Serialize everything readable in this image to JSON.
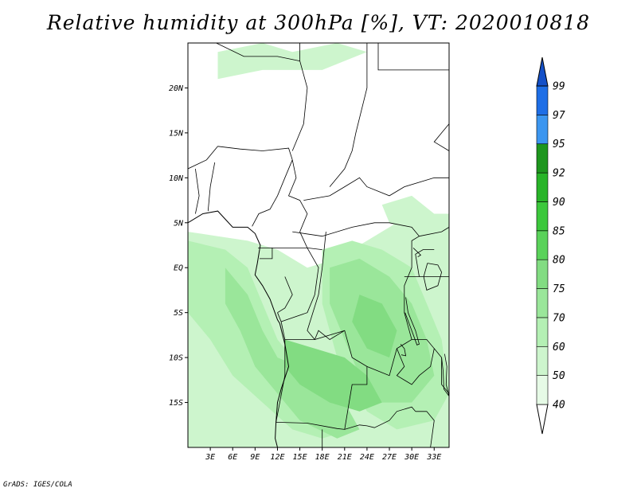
{
  "title": "Relative humidity at 300hPa [%], VT: 2020010818",
  "credit": "GrADS: IGES/COLA",
  "map": {
    "lon_range": [
      0,
      35
    ],
    "lat_range": [
      -20,
      25
    ],
    "lat_ticks": [
      {
        "value": 20,
        "label": "20N"
      },
      {
        "value": 15,
        "label": "15N"
      },
      {
        "value": 10,
        "label": "10N"
      },
      {
        "value": 5,
        "label": "5N"
      },
      {
        "value": 0,
        "label": "EQ"
      },
      {
        "value": -5,
        "label": "5S"
      },
      {
        "value": -10,
        "label": "10S"
      },
      {
        "value": -15,
        "label": "15S"
      }
    ],
    "lon_ticks": [
      {
        "value": 3,
        "label": "3E"
      },
      {
        "value": 6,
        "label": "6E"
      },
      {
        "value": 9,
        "label": "9E"
      },
      {
        "value": 12,
        "label": "12E"
      },
      {
        "value": 15,
        "label": "15E"
      },
      {
        "value": 18,
        "label": "18E"
      },
      {
        "value": 21,
        "label": "21E"
      },
      {
        "value": 24,
        "label": "24E"
      },
      {
        "value": 27,
        "label": "27E"
      },
      {
        "value": 30,
        "label": "30E"
      },
      {
        "value": 33,
        "label": "33E"
      }
    ]
  },
  "colorbar": {
    "levels": [
      "40",
      "50",
      "60",
      "70",
      "75",
      "80",
      "85",
      "90",
      "92",
      "95",
      "97",
      "99"
    ],
    "colors": [
      "#ffffff",
      "#e6fae6",
      "#cdf5cd",
      "#b4f0b4",
      "#9ae69a",
      "#82dc82",
      "#5ad25a",
      "#3cc83c",
      "#28b428",
      "#1e961e",
      "#3c96f0",
      "#1e6ee6",
      "#1450c8"
    ]
  },
  "humidity_regions": [
    {
      "level": "50",
      "lon_lat": [
        [
          0,
          4
        ],
        [
          4,
          3.5
        ],
        [
          8,
          3
        ],
        [
          12,
          2
        ],
        [
          16,
          0
        ],
        [
          20,
          1
        ],
        [
          24,
          3
        ],
        [
          28,
          5
        ],
        [
          32,
          6
        ],
        [
          35,
          5
        ],
        [
          35,
          -20
        ],
        [
          0,
          -20
        ]
      ]
    },
    {
      "level": "50",
      "lon_lat": [
        [
          4,
          24
        ],
        [
          10,
          25
        ],
        [
          14,
          24
        ],
        [
          20,
          25
        ],
        [
          24,
          24
        ],
        [
          18,
          22
        ],
        [
          10,
          22
        ],
        [
          4,
          21
        ]
      ]
    },
    {
      "level": "50",
      "lon_lat": [
        [
          26,
          7
        ],
        [
          30,
          8
        ],
        [
          33,
          6
        ],
        [
          35,
          6
        ],
        [
          35,
          4
        ],
        [
          30,
          4
        ],
        [
          27,
          5
        ]
      ]
    },
    {
      "level": "60",
      "lon_lat": [
        [
          0,
          3
        ],
        [
          5,
          2
        ],
        [
          8,
          0
        ],
        [
          10,
          -4
        ],
        [
          12,
          -8
        ],
        [
          14,
          -10
        ],
        [
          17,
          -12
        ],
        [
          20,
          -14
        ],
        [
          22,
          -18
        ],
        [
          18,
          -19
        ],
        [
          14,
          -18
        ],
        [
          10,
          -15
        ],
        [
          6,
          -12
        ],
        [
          3,
          -8
        ],
        [
          0,
          -5
        ]
      ]
    },
    {
      "level": "60",
      "lon_lat": [
        [
          18,
          2
        ],
        [
          22,
          3
        ],
        [
          26,
          2
        ],
        [
          30,
          0
        ],
        [
          32,
          -4
        ],
        [
          34,
          -8
        ],
        [
          35,
          -14
        ],
        [
          33,
          -17
        ],
        [
          28,
          -18
        ],
        [
          24,
          -16
        ],
        [
          20,
          -10
        ],
        [
          18,
          -4
        ]
      ]
    },
    {
      "level": "70",
      "lon_lat": [
        [
          5,
          0
        ],
        [
          8,
          -3
        ],
        [
          10,
          -7
        ],
        [
          12,
          -10
        ],
        [
          15,
          -11
        ],
        [
          18,
          -13
        ],
        [
          21,
          -15
        ],
        [
          23,
          -18
        ],
        [
          20,
          -19
        ],
        [
          15,
          -17
        ],
        [
          12,
          -14
        ],
        [
          9,
          -11
        ],
        [
          7,
          -7
        ],
        [
          5,
          -4
        ]
      ]
    },
    {
      "level": "70",
      "lon_lat": [
        [
          19,
          0
        ],
        [
          23,
          1
        ],
        [
          27,
          -1
        ],
        [
          30,
          -4
        ],
        [
          32,
          -8
        ],
        [
          33,
          -12
        ],
        [
          30,
          -15
        ],
        [
          26,
          -15
        ],
        [
          23,
          -12
        ],
        [
          21,
          -8
        ],
        [
          19,
          -4
        ]
      ]
    },
    {
      "level": "75",
      "lon_lat": [
        [
          13,
          -8
        ],
        [
          17,
          -9
        ],
        [
          21,
          -10
        ],
        [
          24,
          -12
        ],
        [
          26,
          -15
        ],
        [
          23,
          -16
        ],
        [
          19,
          -15
        ],
        [
          15,
          -13
        ],
        [
          13,
          -11
        ]
      ]
    },
    {
      "level": "75",
      "lon_lat": [
        [
          23,
          -3
        ],
        [
          26,
          -4
        ],
        [
          28,
          -7
        ],
        [
          27,
          -10
        ],
        [
          24,
          -9
        ],
        [
          22,
          -6
        ]
      ]
    }
  ],
  "country_borders": [
    [
      [
        3.8,
        25
      ],
      [
        7.5,
        23.5
      ],
      [
        12,
        23.5
      ],
      [
        15,
        23
      ]
    ],
    [
      [
        15,
        25
      ],
      [
        15,
        23
      ],
      [
        16,
        20
      ],
      [
        15.5,
        16
      ],
      [
        14,
        13
      ]
    ],
    [
      [
        24,
        25
      ],
      [
        24,
        20
      ],
      [
        22.5,
        15
      ],
      [
        22,
        13
      ],
      [
        21,
        11
      ],
      [
        19,
        9
      ]
    ],
    [
      [
        4,
        13.5
      ],
      [
        7,
        13.2
      ],
      [
        10,
        13
      ],
      [
        13.5,
        13.3
      ],
      [
        14,
        12
      ]
    ],
    [
      [
        0,
        11
      ],
      [
        2.5,
        12
      ],
      [
        4,
        13.5
      ]
    ],
    [
      [
        2.7,
        6.3
      ],
      [
        3,
        9
      ],
      [
        3.6,
        11.7
      ]
    ],
    [
      [
        1,
        6
      ],
      [
        1.5,
        8
      ],
      [
        1,
        11
      ]
    ],
    [
      [
        14,
        12
      ],
      [
        14.5,
        10
      ],
      [
        13.5,
        8
      ],
      [
        15,
        7.5
      ],
      [
        16,
        6
      ],
      [
        15,
        4
      ],
      [
        16,
        2.2
      ]
    ],
    [
      [
        8.6,
        4.6
      ],
      [
        9.5,
        6
      ],
      [
        11,
        6.5
      ],
      [
        12,
        8
      ],
      [
        13,
        10
      ],
      [
        14,
        12
      ]
    ],
    [
      [
        14,
        4
      ],
      [
        18,
        3.5
      ],
      [
        22,
        4.5
      ],
      [
        25,
        5
      ],
      [
        27,
        5
      ],
      [
        30,
        4.5
      ],
      [
        31,
        3.5
      ]
    ],
    [
      [
        15.5,
        7.5
      ],
      [
        19,
        8
      ],
      [
        21,
        9
      ],
      [
        23,
        10
      ],
      [
        24,
        9
      ],
      [
        27,
        8
      ],
      [
        29,
        9
      ],
      [
        33,
        10
      ],
      [
        35,
        10
      ]
    ],
    [
      [
        9.4,
        2.2
      ],
      [
        11.3,
        2.2
      ],
      [
        11.3,
        1
      ],
      [
        9.6,
        1
      ]
    ],
    [
      [
        11.3,
        2.2
      ],
      [
        14,
        2.2
      ],
      [
        16,
        2.2
      ],
      [
        18,
        2
      ]
    ],
    [
      [
        13,
        -1
      ],
      [
        14,
        -3
      ],
      [
        13,
        -4.5
      ],
      [
        12,
        -5
      ]
    ],
    [
      [
        16,
        2.2
      ],
      [
        17.5,
        0
      ],
      [
        17,
        -3
      ],
      [
        16,
        -5
      ],
      [
        12.5,
        -6
      ],
      [
        12,
        -5
      ]
    ],
    [
      [
        18.5,
        4
      ],
      [
        18,
        0
      ],
      [
        17.5,
        -3
      ],
      [
        16,
        -7
      ],
      [
        17,
        -8
      ],
      [
        21,
        -7
      ],
      [
        22,
        -10
      ],
      [
        24,
        -11
      ],
      [
        27,
        -12
      ],
      [
        28,
        -9
      ],
      [
        30,
        -8
      ],
      [
        29,
        -5
      ],
      [
        29,
        -2
      ],
      [
        30,
        0
      ],
      [
        30,
        3
      ],
      [
        31,
        3.5
      ]
    ],
    [
      [
        11.8,
        -17.2
      ],
      [
        13,
        -12
      ],
      [
        13,
        -8
      ],
      [
        12.5,
        -6
      ]
    ],
    [
      [
        13,
        -8
      ],
      [
        17,
        -8
      ],
      [
        17.5,
        -7
      ],
      [
        19,
        -8
      ],
      [
        21,
        -7
      ]
    ],
    [
      [
        11.8,
        -17.2
      ],
      [
        16,
        -17.3
      ],
      [
        20,
        -17.9
      ],
      [
        21,
        -18
      ],
      [
        23,
        -17.5
      ],
      [
        24,
        -17.6
      ],
      [
        25,
        -17.8
      ],
      [
        27,
        -17
      ],
      [
        28,
        -16
      ],
      [
        30,
        -15.5
      ],
      [
        30.5,
        -16
      ]
    ],
    [
      [
        21,
        -18
      ],
      [
        22,
        -13
      ],
      [
        24,
        -13
      ],
      [
        24,
        -11
      ]
    ],
    [
      [
        28,
        -9
      ],
      [
        29,
        -11
      ],
      [
        28,
        -12
      ],
      [
        30,
        -13
      ],
      [
        31,
        -12
      ],
      [
        32.5,
        -11
      ],
      [
        33,
        -9
      ],
      [
        32,
        -8
      ],
      [
        30,
        -8
      ]
    ],
    [
      [
        33,
        -9
      ],
      [
        34,
        -10
      ],
      [
        34,
        -13
      ],
      [
        35,
        -14
      ]
    ],
    [
      [
        18,
        -18
      ],
      [
        18,
        -20
      ]
    ],
    [
      [
        30.5,
        -16
      ],
      [
        32,
        -16
      ],
      [
        33,
        -17
      ],
      [
        32.5,
        -20
      ]
    ],
    [
      [
        29,
        -1
      ],
      [
        31,
        -1
      ],
      [
        34,
        -1
      ],
      [
        35,
        -1
      ]
    ],
    [
      [
        31,
        3.5
      ],
      [
        34,
        4
      ],
      [
        35,
        4.5
      ]
    ],
    [
      [
        31,
        -1
      ],
      [
        30.5,
        1.5
      ],
      [
        31.5,
        2
      ],
      [
        33,
        2
      ]
    ],
    [
      [
        25.5,
        25
      ],
      [
        25.5,
        22
      ],
      [
        35,
        22
      ]
    ],
    [
      [
        35,
        13
      ],
      [
        33,
        14
      ],
      [
        34,
        15
      ],
      [
        35,
        16
      ]
    ]
  ],
  "coastline": [
    [
      [
        0,
        5
      ],
      [
        2,
        6
      ],
      [
        4,
        6.3
      ],
      [
        6,
        4.5
      ],
      [
        8,
        4.5
      ],
      [
        9,
        3.8
      ],
      [
        9.7,
        2.5
      ],
      [
        9.3,
        0.5
      ],
      [
        9,
        -0.8
      ],
      [
        10,
        -2
      ],
      [
        11,
        -3.5
      ],
      [
        12,
        -5.8
      ],
      [
        12.3,
        -6.2
      ],
      [
        13,
        -8.5
      ],
      [
        13.5,
        -11
      ],
      [
        12.5,
        -13.5
      ],
      [
        12,
        -15
      ],
      [
        11.8,
        -17.2
      ],
      [
        11.7,
        -19
      ],
      [
        12,
        -20
      ]
    ]
  ],
  "lakes": [
    [
      [
        32.1,
        0.5
      ],
      [
        33.5,
        0.3
      ],
      [
        34,
        -0.5
      ],
      [
        33.5,
        -2
      ],
      [
        32,
        -2.5
      ],
      [
        31.6,
        -1
      ],
      [
        32.1,
        0.5
      ]
    ],
    [
      [
        29.2,
        -3.3
      ],
      [
        29.5,
        -5
      ],
      [
        30.5,
        -7
      ],
      [
        31,
        -8.5
      ],
      [
        30.7,
        -8.6
      ],
      [
        30,
        -7
      ],
      [
        29.1,
        -5
      ]
    ],
    [
      [
        34.4,
        -9.6
      ],
      [
        34.7,
        -11
      ],
      [
        34.6,
        -13
      ],
      [
        35,
        -14.3
      ],
      [
        34.3,
        -13.5
      ],
      [
        34.2,
        -11.5
      ],
      [
        34,
        -10
      ]
    ],
    [
      [
        28.5,
        -8.5
      ],
      [
        29,
        -9
      ],
      [
        29.2,
        -9.8
      ],
      [
        28.6,
        -9.7
      ]
    ],
    [
      [
        30.2,
        2.2
      ],
      [
        31.2,
        1.4
      ],
      [
        30.8,
        1.2
      ]
    ]
  ]
}
